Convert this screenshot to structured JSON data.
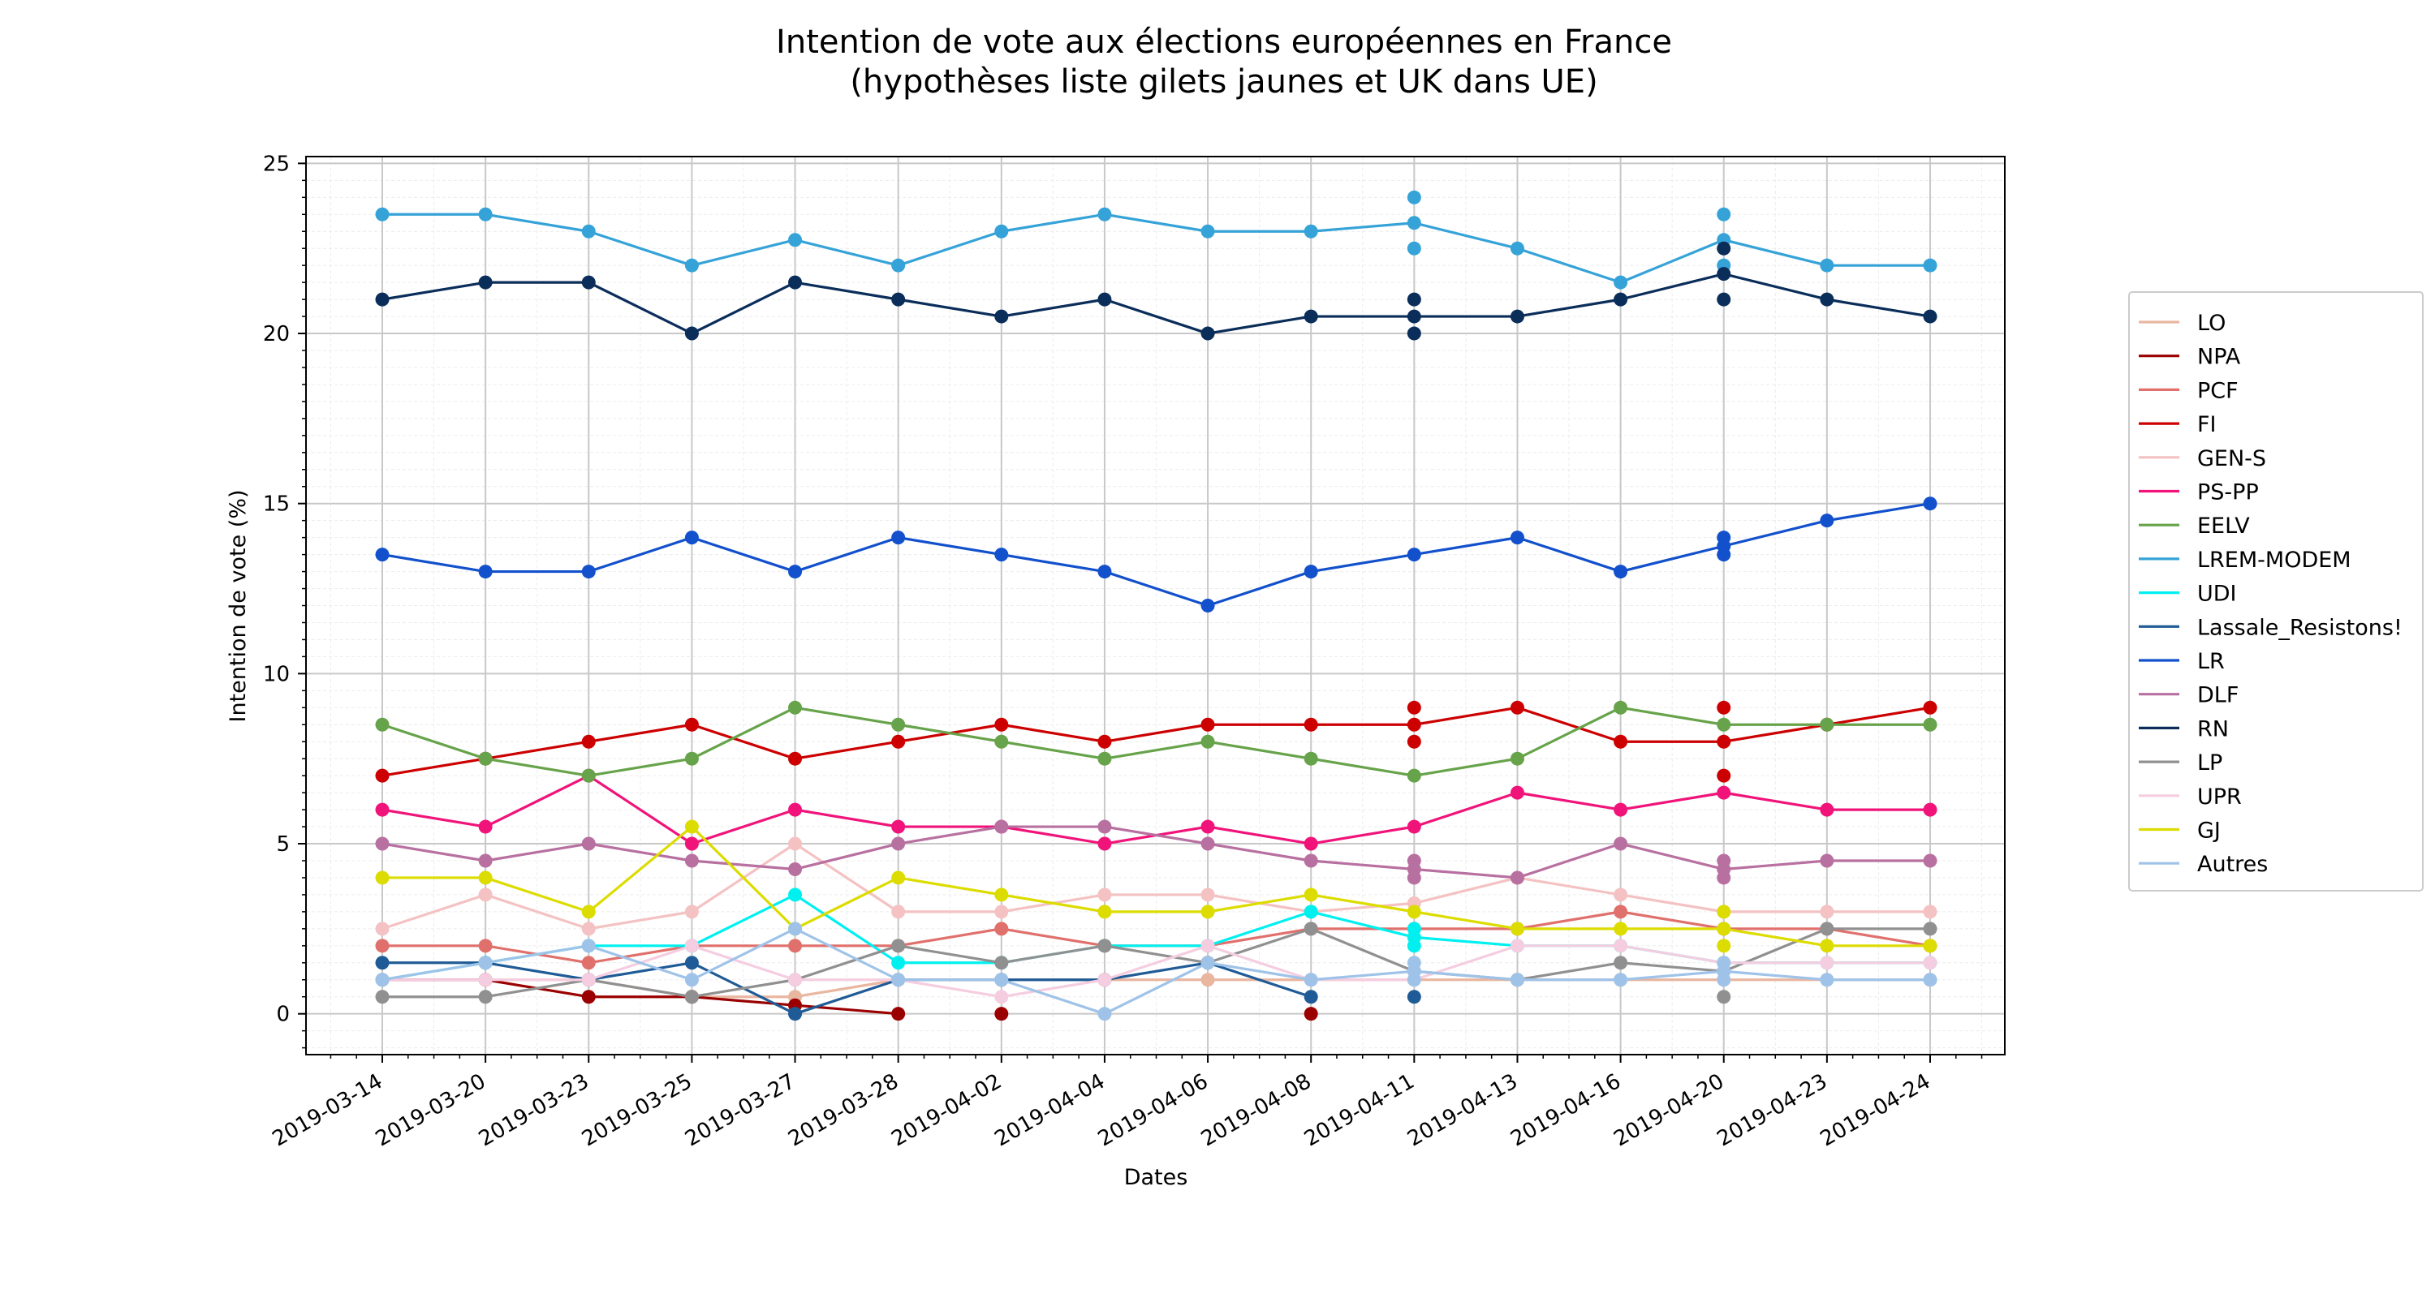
{
  "chart_data": {
    "type": "line",
    "title": [
      "Intention de vote aux élections européennes en France",
      "(hypothèses liste gilets jaunes et UK dans UE)"
    ],
    "xlabel": "Dates",
    "ylabel": "Intention de vote (%)",
    "ylim": [
      -1.2,
      25.2
    ],
    "yticks": [
      0,
      5,
      10,
      15,
      20,
      25
    ],
    "grid": true,
    "legend_position": "right",
    "categories": [
      "2019-03-14",
      "2019-03-20",
      "2019-03-23",
      "2019-03-25",
      "2019-03-27",
      "2019-03-28",
      "2019-04-02",
      "2019-04-04",
      "2019-04-06",
      "2019-04-08",
      "2019-04-11",
      "2019-04-13",
      "2019-04-16",
      "2019-04-20",
      "2019-04-23",
      "2019-04-24"
    ],
    "series": [
      {
        "name": "LO",
        "color": "#e9b6a0",
        "values": [
          1,
          1,
          1,
          0.5,
          0.5,
          1,
          1,
          1,
          1,
          1,
          1,
          1,
          1,
          1,
          1,
          1
        ],
        "extra": []
      },
      {
        "name": "NPA",
        "color": "#9b0000",
        "values": [
          1,
          1,
          0.5,
          0.5,
          0.25,
          0,
          null,
          null,
          null,
          null,
          null,
          null,
          null,
          null,
          null,
          null
        ],
        "extra": [
          [
            6,
            0
          ],
          [
            9,
            0
          ]
        ]
      },
      {
        "name": "PCF",
        "color": "#e0706c",
        "values": [
          2,
          2,
          1.5,
          2,
          2,
          2,
          2.5,
          2,
          2,
          2.5,
          2.5,
          2.5,
          3,
          2.5,
          2.5,
          2
        ],
        "extra": []
      },
      {
        "name": "FI",
        "color": "#cc0000",
        "values": [
          7,
          7.5,
          8,
          8.5,
          7.5,
          8,
          8.5,
          8,
          8.5,
          8.5,
          8.5,
          9,
          8,
          8,
          8.5,
          9
        ],
        "extra": [
          [
            10,
            9
          ],
          [
            10,
            8
          ],
          [
            13,
            9
          ],
          [
            13,
            7
          ]
        ]
      },
      {
        "name": "GEN-S",
        "color": "#f4c2c2",
        "values": [
          2.5,
          3.5,
          2.5,
          3,
          5,
          3,
          3,
          3.5,
          3.5,
          3,
          3.25,
          4,
          3.5,
          3,
          3,
          3
        ],
        "extra": []
      },
      {
        "name": "PS-PP",
        "color": "#f0147a",
        "values": [
          6,
          5.5,
          7,
          5,
          6,
          5.5,
          5.5,
          5,
          5.5,
          5,
          5.5,
          6.5,
          6,
          6.5,
          6,
          6
        ],
        "extra": []
      },
      {
        "name": "EELV",
        "color": "#67a34a",
        "values": [
          8.5,
          7.5,
          7,
          7.5,
          9,
          8.5,
          8,
          7.5,
          8,
          7.5,
          7,
          7.5,
          9,
          8.5,
          8.5,
          8.5
        ],
        "extra": []
      },
      {
        "name": "LREM-MODEM",
        "color": "#35a3d8",
        "values": [
          23.5,
          23.5,
          23,
          22,
          22.75,
          22,
          23,
          23.5,
          23,
          23,
          23.25,
          22.5,
          21.5,
          22.75,
          22,
          22
        ],
        "extra": [
          [
            10,
            24
          ],
          [
            10,
            22.5
          ],
          [
            13,
            23.5
          ],
          [
            13,
            22
          ]
        ]
      },
      {
        "name": "UDI",
        "color": "#00f0f0",
        "values": [
          1,
          1.5,
          2,
          2,
          3.5,
          1.5,
          1.5,
          2,
          2,
          3,
          2.25,
          2,
          2,
          1.5,
          1.5,
          1.5
        ],
        "extra": [
          [
            10,
            2.5
          ],
          [
            10,
            2
          ]
        ]
      },
      {
        "name": "Lassale_Resistons!",
        "color": "#1f5b96",
        "values": [
          1.5,
          1.5,
          1,
          1.5,
          0,
          1,
          1,
          1,
          1.5,
          0.5,
          null,
          null,
          null,
          null,
          null,
          null
        ],
        "extra": [
          [
            10,
            0.5
          ]
        ]
      },
      {
        "name": "LR",
        "color": "#1250cc",
        "values": [
          13.5,
          13,
          13,
          14,
          13,
          14,
          13.5,
          13,
          12,
          13,
          13.5,
          14,
          13,
          13.75,
          14.5,
          15
        ],
        "extra": [
          [
            13,
            14
          ],
          [
            13,
            13.5
          ]
        ]
      },
      {
        "name": "DLF",
        "color": "#b870a0",
        "values": [
          5,
          4.5,
          5,
          4.5,
          4.25,
          5,
          5.5,
          5.5,
          5,
          4.5,
          4.25,
          4,
          5,
          4.25,
          4.5,
          4.5
        ],
        "extra": [
          [
            10,
            4.5
          ],
          [
            10,
            4
          ],
          [
            13,
            4.5
          ],
          [
            13,
            4
          ]
        ]
      },
      {
        "name": "RN",
        "color": "#0a2d5a",
        "values": [
          21,
          21.5,
          21.5,
          20,
          21.5,
          21,
          20.5,
          21,
          20,
          20.5,
          20.5,
          20.5,
          21,
          21.75,
          21,
          20.5
        ],
        "extra": [
          [
            10,
            21
          ],
          [
            10,
            20
          ],
          [
            13,
            22.5
          ],
          [
            13,
            21
          ]
        ]
      },
      {
        "name": "LP",
        "color": "#909090",
        "values": [
          0.5,
          0.5,
          1,
          0.5,
          1,
          2,
          1.5,
          2,
          1.5,
          2.5,
          1.25,
          1,
          1.5,
          1.25,
          2.5,
          2.5
        ],
        "extra": [
          [
            13,
            0.5
          ]
        ]
      },
      {
        "name": "UPR",
        "color": "#f5cde0",
        "values": [
          1,
          1,
          1,
          2,
          1,
          1,
          0.5,
          1,
          2,
          1,
          1,
          2,
          2,
          1.5,
          1.5,
          1.5
        ],
        "extra": []
      },
      {
        "name": "GJ",
        "color": "#dcdc00",
        "values": [
          4,
          4,
          3,
          5.5,
          2.5,
          4,
          3.5,
          3,
          3,
          3.5,
          3,
          2.5,
          2.5,
          2.5,
          2,
          2
        ],
        "extra": [
          [
            13,
            3
          ],
          [
            13,
            2
          ]
        ]
      },
      {
        "name": "Autres",
        "color": "#9fc3e8",
        "values": [
          1,
          1.5,
          2,
          1,
          2.5,
          1,
          1,
          0,
          1.5,
          1,
          1.25,
          1,
          1,
          1.25,
          1,
          1
        ],
        "extra": [
          [
            10,
            1.5
          ],
          [
            10,
            1
          ],
          [
            13,
            1.5
          ],
          [
            13,
            1
          ]
        ]
      }
    ]
  }
}
